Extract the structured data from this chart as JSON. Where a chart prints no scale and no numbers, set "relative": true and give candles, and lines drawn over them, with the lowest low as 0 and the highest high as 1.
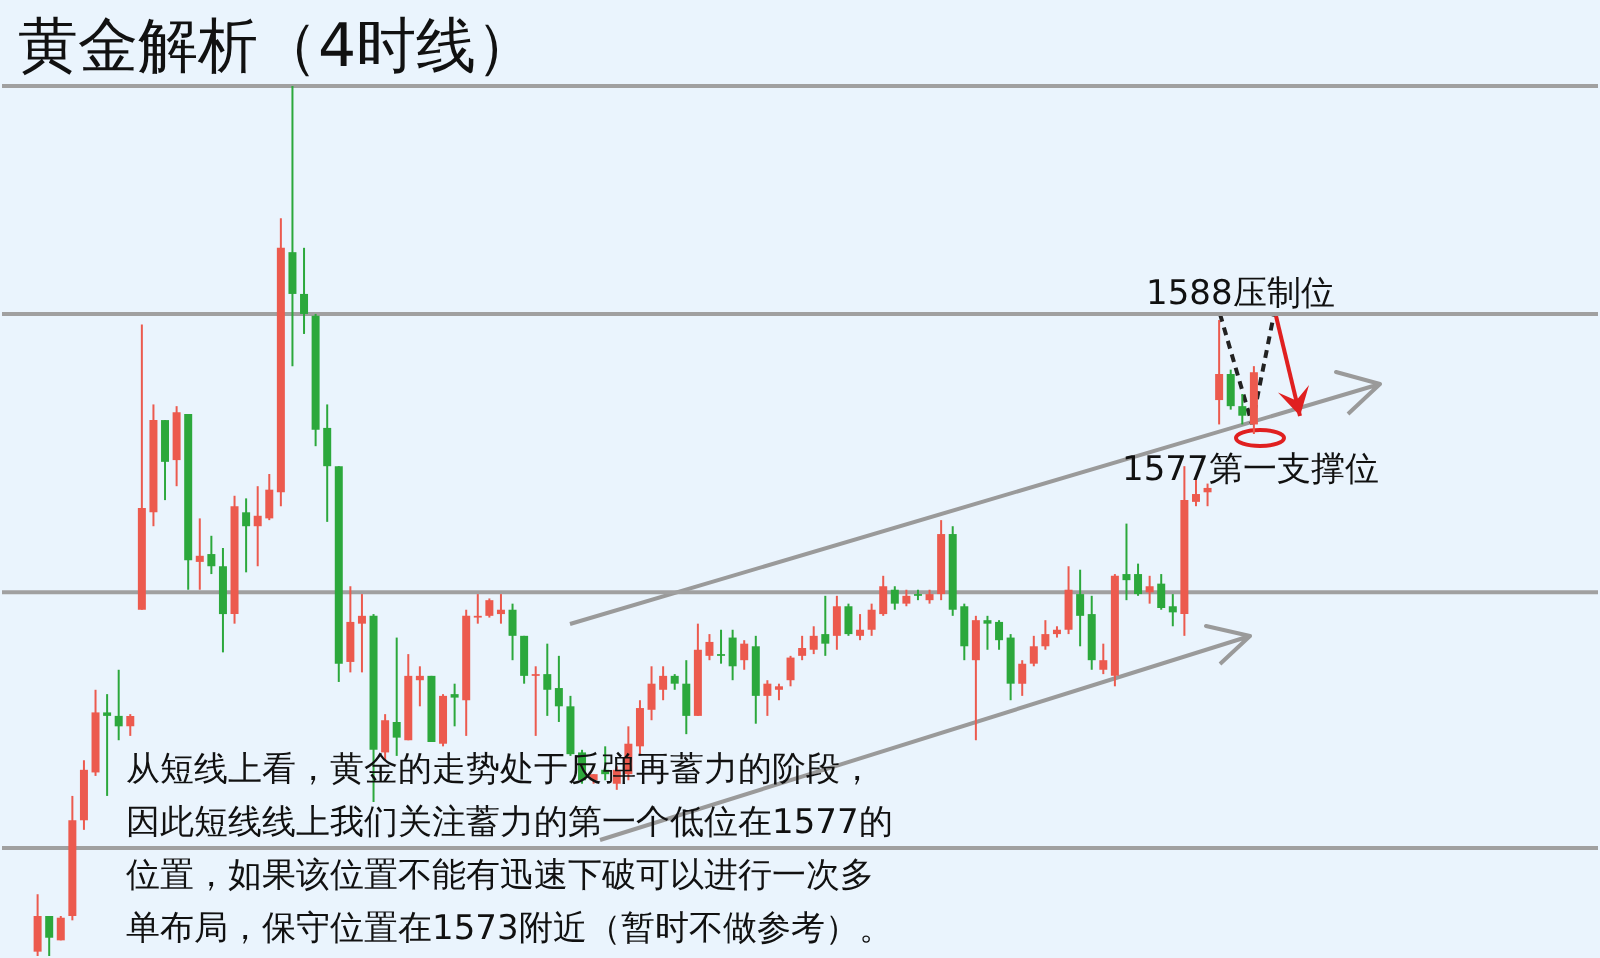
{
  "chart_data": {
    "type": "candlestick",
    "title": "黄金解析（4时线）",
    "relative": true,
    "categories": [
      null,
      null,
      null,
      null,
      null,
      null,
      null,
      null,
      null,
      null,
      null,
      null,
      null,
      null,
      null,
      null,
      null,
      null,
      null,
      null,
      null,
      null,
      null,
      null,
      null,
      null,
      null,
      null,
      null,
      null,
      null,
      null,
      null,
      null,
      null,
      null,
      null,
      null,
      null,
      null,
      null,
      null,
      null,
      null,
      null,
      null,
      null,
      null,
      null,
      null,
      null,
      null,
      null,
      null,
      null,
      null,
      null,
      null,
      null,
      null,
      null,
      null,
      null,
      null,
      null,
      null,
      null,
      null,
      null,
      null,
      null,
      null,
      null,
      null,
      null,
      null,
      null,
      null,
      null,
      null,
      null,
      null,
      null,
      null,
      null,
      null,
      null,
      null,
      null,
      null,
      null,
      null,
      null,
      null,
      null,
      null,
      null,
      null,
      null,
      null,
      null,
      null,
      null,
      null,
      null,
      null
    ],
    "ohlc": [
      [
        0.005,
        0.071,
        0,
        0.046
      ],
      [
        0.046,
        0.046,
        0,
        0.021
      ],
      [
        0.018,
        0.046,
        0.018,
        0.044
      ],
      [
        0.046,
        0.184,
        0.041,
        0.156
      ],
      [
        0.156,
        0.225,
        0.145,
        0.214
      ],
      [
        0.211,
        0.306,
        0.207,
        0.28
      ],
      [
        0.28,
        0.301,
        0.184,
        0.276
      ],
      [
        0.276,
        0.329,
        0.248,
        0.264
      ],
      [
        0.264,
        0.278,
        0.253,
        0.276
      ],
      [
        0.398,
        0.726,
        0.398,
        0.515
      ],
      [
        0.51,
        0.634,
        0.494,
        0.616
      ],
      [
        0.616,
        0.616,
        0.524,
        0.568
      ],
      [
        0.57,
        0.632,
        0.54,
        0.625
      ],
      [
        0.623,
        0.623,
        0.421,
        0.455
      ],
      [
        0.453,
        0.503,
        0.421,
        0.46
      ],
      [
        0.462,
        0.483,
        0.439,
        0.448
      ],
      [
        0.448,
        0.469,
        0.349,
        0.393
      ],
      [
        0.393,
        0.529,
        0.382,
        0.517
      ],
      [
        0.51,
        0.526,
        0.441,
        0.494
      ],
      [
        0.494,
        0.54,
        0.448,
        0.506
      ],
      [
        0.503,
        0.554,
        0.501,
        0.536
      ],
      [
        0.533,
        0.848,
        0.517,
        0.814
      ],
      [
        0.809,
        1,
        0.678,
        0.761
      ],
      [
        0.761,
        0.814,
        0.715,
        0.738
      ],
      [
        0.736,
        0.738,
        0.586,
        0.605
      ],
      [
        0.607,
        0.634,
        0.499,
        0.563
      ],
      [
        0.563,
        0.563,
        0.315,
        0.336
      ],
      [
        0.338,
        0.425,
        0.326,
        0.384
      ],
      [
        0.382,
        0.416,
        0.326,
        0.391
      ],
      [
        0.391,
        0.393,
        0.177,
        0.237
      ],
      [
        0.234,
        0.278,
        0.225,
        0.271
      ],
      [
        0.269,
        0.366,
        0.23,
        0.251
      ],
      [
        0.248,
        0.347,
        0.248,
        0.322
      ],
      [
        0.317,
        0.333,
        0.287,
        0.322
      ],
      [
        0.322,
        0.322,
        0.246,
        0.246
      ],
      [
        0.244,
        0.301,
        0.241,
        0.299
      ],
      [
        0.301,
        0.313,
        0.264,
        0.297
      ],
      [
        0.294,
        0.398,
        0.253,
        0.391
      ],
      [
        0.389,
        0.416,
        0.382,
        0.391
      ],
      [
        0.391,
        0.411,
        0.389,
        0.409
      ],
      [
        0.393,
        0.416,
        0.382,
        0.398
      ],
      [
        0.398,
        0.405,
        0.34,
        0.368
      ],
      [
        0.368,
        0.368,
        0.313,
        0.322
      ],
      [
        0.322,
        0.333,
        0.253,
        0.324
      ],
      [
        0.324,
        0.359,
        0.276,
        0.306
      ],
      [
        0.308,
        0.345,
        0.269,
        0.287
      ],
      [
        0.287,
        0.299,
        0.23,
        0.232
      ],
      [
        0.234,
        0.237,
        0.198,
        0.202
      ],
      [
        0.202,
        0.209,
        0.198,
        0.209
      ],
      [
        0.214,
        0.241,
        0.202,
        0.209
      ],
      [
        0.198,
        0.218,
        0.191,
        0.214
      ],
      [
        0.209,
        0.264,
        0.202,
        0.244
      ],
      [
        0.241,
        0.294,
        0.232,
        0.285
      ],
      [
        0.283,
        0.333,
        0.271,
        0.313
      ],
      [
        0.306,
        0.333,
        0.294,
        0.322
      ],
      [
        0.322,
        0.324,
        0.306,
        0.313
      ],
      [
        0.313,
        0.34,
        0.255,
        0.276
      ],
      [
        0.276,
        0.382,
        0.276,
        0.352
      ],
      [
        0.345,
        0.37,
        0.34,
        0.361
      ],
      [
        0.347,
        0.375,
        0.336,
        0.345
      ],
      [
        0.366,
        0.375,
        0.317,
        0.333
      ],
      [
        0.34,
        0.363,
        0.329,
        0.359
      ],
      [
        0.356,
        0.368,
        0.267,
        0.299
      ],
      [
        0.299,
        0.317,
        0.276,
        0.313
      ],
      [
        0.306,
        0.313,
        0.294,
        0.31
      ],
      [
        0.317,
        0.345,
        0.31,
        0.343
      ],
      [
        0.345,
        0.368,
        0.34,
        0.354
      ],
      [
        0.352,
        0.379,
        0.347,
        0.368
      ],
      [
        0.37,
        0.414,
        0.345,
        0.359
      ],
      [
        0.368,
        0.414,
        0.352,
        0.402
      ],
      [
        0.402,
        0.405,
        0.368,
        0.37
      ],
      [
        0.368,
        0.393,
        0.363,
        0.375
      ],
      [
        0.375,
        0.405,
        0.368,
        0.398
      ],
      [
        0.393,
        0.437,
        0.391,
        0.425
      ],
      [
        0.421,
        0.425,
        0.398,
        0.405
      ],
      [
        0.405,
        0.421,
        0.402,
        0.414
      ],
      [
        0.416,
        0.421,
        0.409,
        0.414
      ],
      [
        0.409,
        0.421,
        0.405,
        0.416
      ],
      [
        0.416,
        0.501,
        0.409,
        0.485
      ],
      [
        0.485,
        0.494,
        0.391,
        0.398
      ],
      [
        0.402,
        0.405,
        0.34,
        0.356
      ],
      [
        0.34,
        0.391,
        0.248,
        0.386
      ],
      [
        0.386,
        0.391,
        0.352,
        0.382
      ],
      [
        0.384,
        0.386,
        0.352,
        0.363
      ],
      [
        0.366,
        0.37,
        0.294,
        0.313
      ],
      [
        0.313,
        0.34,
        0.299,
        0.336
      ],
      [
        0.336,
        0.368,
        0.333,
        0.356
      ],
      [
        0.356,
        0.386,
        0.352,
        0.37
      ],
      [
        0.37,
        0.379,
        0.366,
        0.375
      ],
      [
        0.375,
        0.448,
        0.37,
        0.421
      ],
      [
        0.416,
        0.444,
        0.356,
        0.391
      ],
      [
        0.393,
        0.414,
        0.329,
        0.34
      ],
      [
        0.329,
        0.359,
        0.324,
        0.34
      ],
      [
        0.322,
        0.439,
        0.31,
        0.437
      ],
      [
        0.439,
        0.497,
        0.409,
        0.432
      ],
      [
        0.439,
        0.451,
        0.414,
        0.416
      ],
      [
        0.418,
        0.437,
        0.405,
        0.425
      ],
      [
        0.428,
        0.439,
        0.398,
        0.4
      ],
      [
        0.402,
        0.416,
        0.379,
        0.395
      ],
      [
        0.393,
        0.563,
        0.368,
        0.524
      ],
      [
        0.522,
        0.552,
        0.517,
        0.531
      ],
      [
        0.533,
        0.543,
        0.517,
        0.538
      ],
      [
        0.639,
        0.731,
        0.611,
        0.669
      ],
      [
        0.669,
        0.674,
        0.628,
        0.632
      ],
      [
        0.632,
        0.646,
        0.611,
        0.621
      ],
      [
        0.611,
        0.678,
        0.6,
        0.671
      ]
    ],
    "colors": [
      "#ec5a4e",
      "#2ca83c",
      "#ec5a4e",
      "#ec5a4e",
      "#ec5a4e",
      "#ec5a4e",
      "#2ca83c",
      "#2ca83c",
      "#ec5a4e",
      "#ec5a4e",
      "#ec5a4e",
      "#2ca83c",
      "#ec5a4e",
      "#2ca83c",
      "#ec5a4e",
      "#2ca83c",
      "#2ca83c",
      "#ec5a4e",
      "#2ca83c",
      "#ec5a4e",
      "#ec5a4e",
      "#ec5a4e",
      "#2ca83c",
      "#2ca83c",
      "#2ca83c",
      "#2ca83c",
      "#2ca83c",
      "#ec5a4e",
      "#ec5a4e",
      "#2ca83c",
      "#ec5a4e",
      "#2ca83c",
      "#ec5a4e",
      "#ec5a4e",
      "#2ca83c",
      "#ec5a4e",
      "#2ca83c",
      "#ec5a4e",
      "#ec5a4e",
      "#ec5a4e",
      "#ec5a4e",
      "#2ca83c",
      "#2ca83c",
      "#ec5a4e",
      "#2ca83c",
      "#2ca83c",
      "#2ca83c",
      "#2ca83c",
      "#ec5a4e",
      "#2ca83c",
      "#ec5a4e",
      "#ec5a4e",
      "#ec5a4e",
      "#ec5a4e",
      "#ec5a4e",
      "#2ca83c",
      "#2ca83c",
      "#ec5a4e",
      "#ec5a4e",
      "#2ca83c",
      "#2ca83c",
      "#ec5a4e",
      "#2ca83c",
      "#ec5a4e",
      "#ec5a4e",
      "#ec5a4e",
      "#ec5a4e",
      "#ec5a4e",
      "#2ca83c",
      "#ec5a4e",
      "#2ca83c",
      "#ec5a4e",
      "#ec5a4e",
      "#ec5a4e",
      "#2ca83c",
      "#ec5a4e",
      "#2ca83c",
      "#ec5a4e",
      "#ec5a4e",
      "#2ca83c",
      "#2ca83c",
      "#ec5a4e",
      "#2ca83c",
      "#2ca83c",
      "#2ca83c",
      "#ec5a4e",
      "#ec5a4e",
      "#ec5a4e",
      "#ec5a4e",
      "#ec5a4e",
      "#2ca83c",
      "#2ca83c",
      "#ec5a4e",
      "#ec5a4e",
      "#2ca83c",
      "#2ca83c",
      "#ec5a4e",
      "#2ca83c",
      "#2ca83c",
      "#ec5a4e",
      "#ec5a4e",
      "#ec5a4e",
      "#ec5a4e",
      "#2ca83c",
      "#2ca83c",
      "#ec5a4e"
    ],
    "ref_lines": [
      {
        "axis": "y",
        "value": 1,
        "color": "#a0a0a0"
      },
      {
        "axis": "y",
        "value": 0.738,
        "color": "#a0a0a0"
      },
      {
        "axis": "y",
        "value": 0.418,
        "color": "#a0a0a0"
      },
      {
        "axis": "y",
        "value": 0.124,
        "color": "#a0a0a0"
      }
    ],
    "annotations": [
      "1588压制位",
      "1577第一支撑位",
      "从短线上看，黄金的走势处于反弹再蓄力的阶段，因此短线线上我们关注蓄力的第一个低位在1577的位置，如果该位置不能有迅速下破可以进行一次多单布局，保守位置在1573附近（暂时不做参考）。"
    ]
  }
}
